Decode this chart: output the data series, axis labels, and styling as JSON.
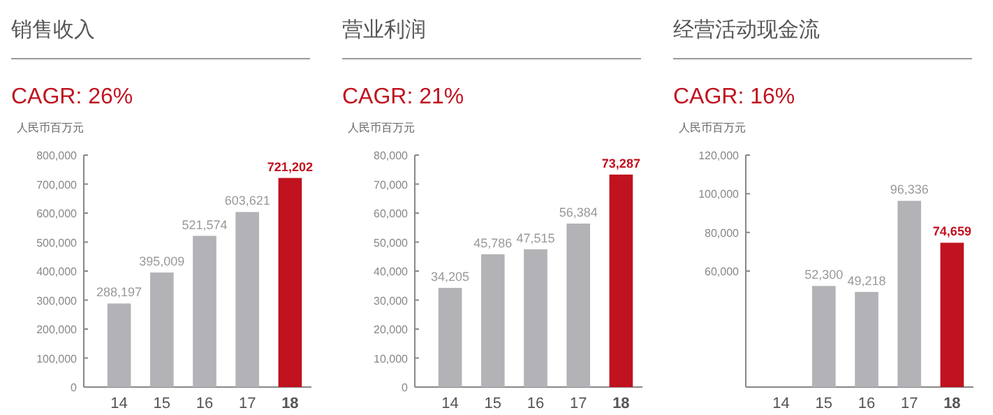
{
  "chart_data": [
    {
      "type": "bar",
      "title": "销售收入",
      "subtitle": "CAGR: 26%",
      "ylabel": "人民币百万元",
      "categories": [
        "14",
        "15",
        "16",
        "17",
        "18"
      ],
      "values": [
        288197,
        395009,
        521574,
        603621,
        721202
      ],
      "colors": [
        "#b3b3b7",
        "#b3b3b7",
        "#b3b3b7",
        "#b3b3b7",
        "#c0121f"
      ],
      "value_labels": [
        "288,197",
        "395,009",
        "521,574",
        "603,621",
        "721,202"
      ],
      "ylim": [
        0,
        800000
      ],
      "yticks": [
        {
          "value": 0,
          "label": "0"
        },
        {
          "value": 100000,
          "label": "100,000"
        },
        {
          "value": 200000,
          "label": "200,000"
        },
        {
          "value": 300000,
          "label": "300,000"
        },
        {
          "value": 400000,
          "label": "400,000"
        },
        {
          "value": 500000,
          "label": "500,000"
        },
        {
          "value": 600000,
          "label": "600,000"
        },
        {
          "value": 700000,
          "label": "700,000"
        },
        {
          "value": 800000,
          "label": "800,000"
        }
      ]
    },
    {
      "type": "bar",
      "title": "营业利润",
      "subtitle": "CAGR: 21%",
      "ylabel": "人民币百万元",
      "categories": [
        "14",
        "15",
        "16",
        "17",
        "18"
      ],
      "values": [
        34205,
        45786,
        47515,
        56384,
        73287
      ],
      "colors": [
        "#b3b3b7",
        "#b3b3b7",
        "#b3b3b7",
        "#b3b3b7",
        "#c0121f"
      ],
      "value_labels": [
        "34,205",
        "45,786",
        "47,515",
        "56,384",
        "73,287"
      ],
      "ylim": [
        0,
        80000
      ],
      "yticks": [
        {
          "value": 0,
          "label": "0"
        },
        {
          "value": 10000,
          "label": "10,000"
        },
        {
          "value": 20000,
          "label": "20,000"
        },
        {
          "value": 30000,
          "label": "30,000"
        },
        {
          "value": 40000,
          "label": "40,000"
        },
        {
          "value": 50000,
          "label": "50,000"
        },
        {
          "value": 60000,
          "label": "60,000"
        },
        {
          "value": 70000,
          "label": "70,000"
        },
        {
          "value": 80000,
          "label": "80,000"
        }
      ]
    },
    {
      "type": "bar",
      "title": "经营活动现金流",
      "subtitle": "CAGR: 16%",
      "ylabel": "人民币百万元",
      "categories": [
        "14",
        "15",
        "16",
        "17",
        "18"
      ],
      "values": [
        null,
        52300,
        49218,
        96336,
        74659
      ],
      "colors": [
        "#b3b3b7",
        "#b3b3b7",
        "#b3b3b7",
        "#b3b3b7",
        "#c0121f"
      ],
      "value_labels": [
        null,
        "52,300",
        "49,218",
        "96,336",
        "74,659"
      ],
      "ylim": [
        0,
        120000
      ],
      "yticks": [
        {
          "value": 60000,
          "label": "60,000"
        },
        {
          "value": 80000,
          "label": "80,000"
        },
        {
          "value": 100000,
          "label": "100,000"
        },
        {
          "value": 120000,
          "label": "120,000"
        }
      ]
    }
  ]
}
